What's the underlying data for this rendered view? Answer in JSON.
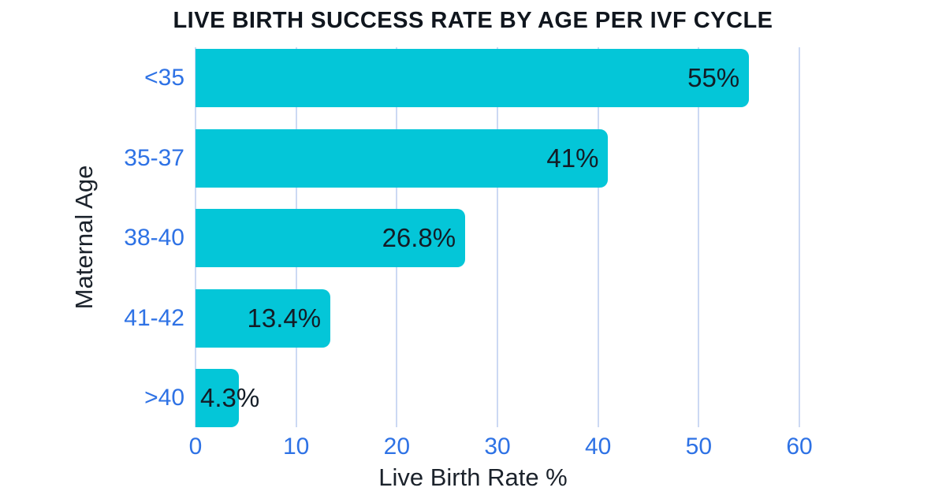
{
  "chart_data": {
    "type": "bar",
    "orientation": "horizontal",
    "title": "LIVE BIRTH SUCCESS RATE BY AGE PER IVF CYCLE",
    "categories": [
      "<35",
      "35-37",
      "38-40",
      "41-42",
      ">40"
    ],
    "values": [
      55,
      41,
      26.8,
      13.4,
      4.3
    ],
    "value_labels": [
      "55%",
      "41%",
      "26.8%",
      "13.4%",
      "4.3%"
    ],
    "xlabel": "Live Birth Rate %",
    "ylabel": "Maternal Age",
    "xlim": [
      0,
      60
    ],
    "xticks": [
      0,
      10,
      20,
      30,
      40,
      50,
      60
    ],
    "grid": "vertical-only",
    "legend": "none",
    "colors": {
      "bar": "#04c6d8",
      "axis_tick_text": "#2e72e5",
      "category_text": "#2e72e5",
      "gridline": "#ccd9f3",
      "title_text": "#10161e",
      "value_label_text": "#131c26",
      "axis_title_text": "#1b222b",
      "background": "#ffffff"
    }
  }
}
